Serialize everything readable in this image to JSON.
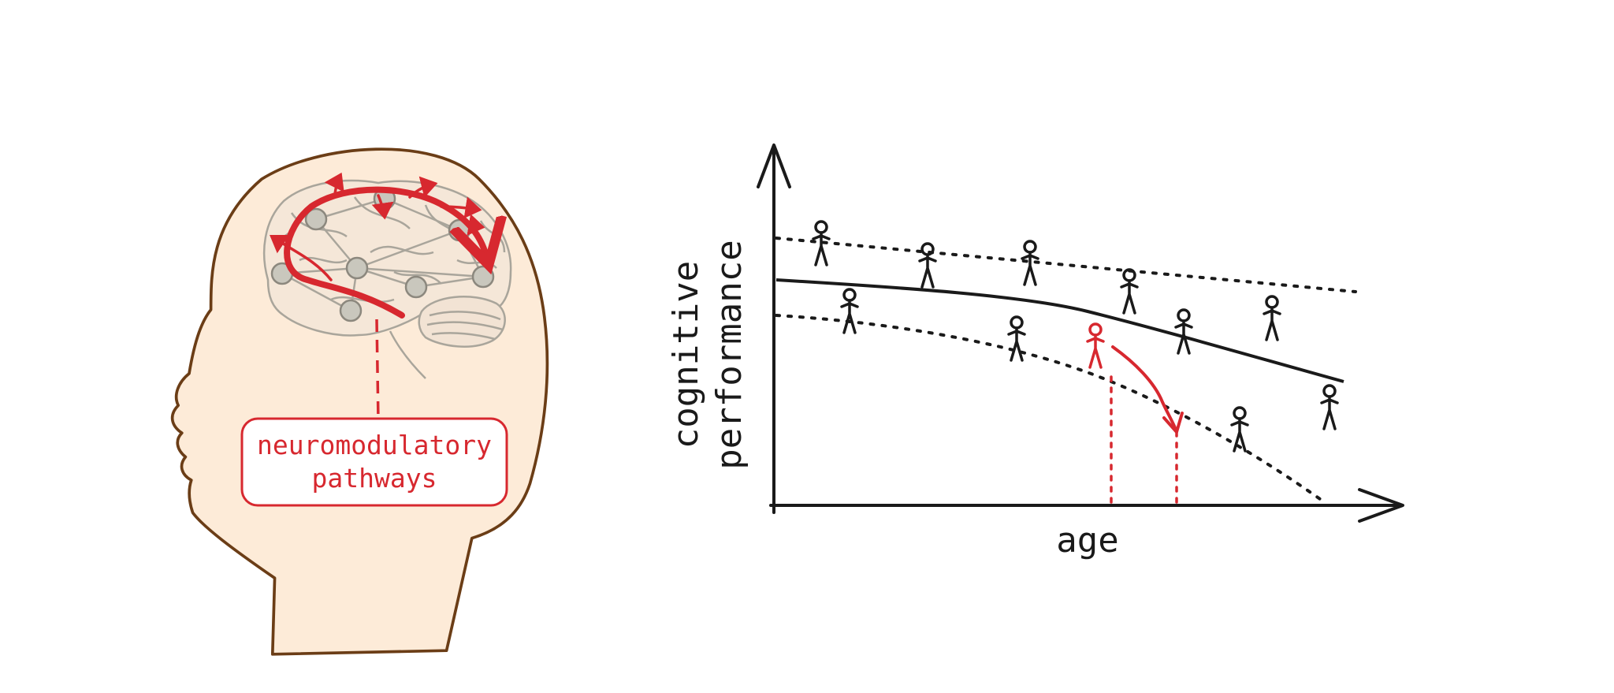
{
  "head_panel": {
    "label_lines": [
      "neuromodulatory",
      "pathways"
    ]
  },
  "graph_panel": {
    "y_label_lines": [
      "cognitive",
      "performance"
    ],
    "x_label": "age"
  },
  "colors": {
    "highlight": "#d7282f",
    "ink": "#1a1a1a",
    "skin": "#fdebd8",
    "head_outline": "#6b3d16",
    "brain_node": "#c9c7bd"
  }
}
